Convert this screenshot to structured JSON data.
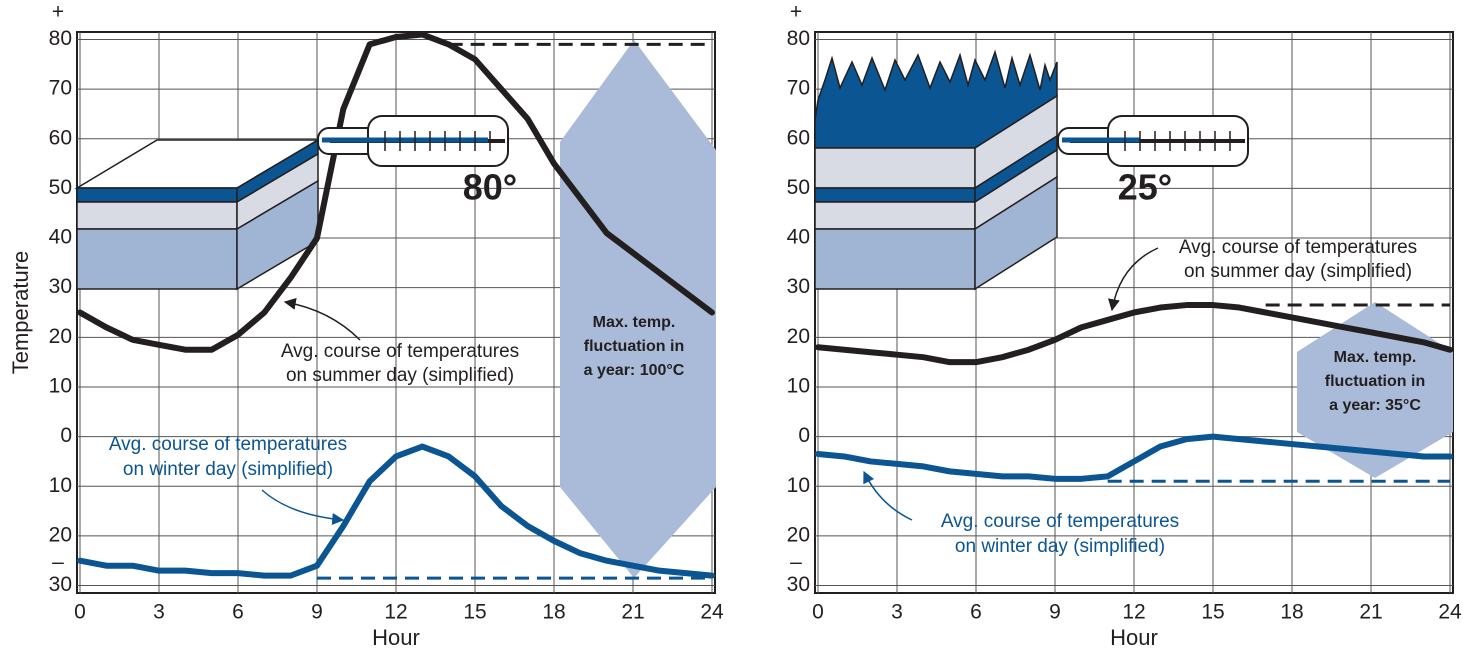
{
  "chart_data": [
    {
      "type": "line",
      "ylabel": "Temperature",
      "xlabel": "Hour",
      "sign_labels": [
        "+",
        "–"
      ],
      "x": [
        0,
        1,
        2,
        3,
        4,
        5,
        6,
        7,
        8,
        9,
        10,
        11,
        12,
        13,
        14,
        15,
        16,
        17,
        18,
        19,
        20,
        21,
        22,
        23,
        24
      ],
      "xlim": [
        0,
        24
      ],
      "xticks": [
        0,
        3,
        6,
        9,
        12,
        15,
        18,
        21,
        24
      ],
      "ylim": [
        -31.5,
        81.5
      ],
      "yticks": [
        80,
        70,
        60,
        50,
        40,
        30,
        20,
        10,
        0,
        {
          "value": -10,
          "label": "10"
        },
        {
          "value": -20,
          "label": "20"
        },
        {
          "value": -30,
          "label": "30"
        }
      ],
      "grid": true,
      "series": [
        {
          "name": "Avg. course of temperatures on summer day (simplified)",
          "color": "#231f20",
          "values": [
            25,
            22,
            19.5,
            18.5,
            17.5,
            17.5,
            20.5,
            25,
            32,
            40,
            66,
            79,
            80.5,
            81,
            79,
            76,
            70,
            64,
            55,
            48,
            41,
            37,
            33,
            29,
            25
          ]
        },
        {
          "name": "Avg. course of temperatures on winter day (simplified)",
          "color": "#0b5592",
          "values": [
            -25,
            -26,
            -26,
            -27,
            -27,
            -27.5,
            -27.5,
            -28,
            -28,
            -26,
            -18,
            -9,
            -4,
            -2,
            -4,
            -8,
            -14,
            -18,
            -21,
            -23.5,
            -25,
            -26,
            -27,
            -27.5,
            -28
          ]
        }
      ],
      "max_lines": [
        {
          "color": "#231f20",
          "value": 79,
          "from": 14,
          "to": 24
        },
        {
          "color": "#0b5592",
          "value": -28.5,
          "from": 9,
          "to": 24
        }
      ],
      "annotations": {
        "summer": [
          "Avg. course of temperatures",
          "on summer day (simplified)"
        ],
        "winter": [
          "Avg. course of temperatures",
          "on winter day (simplified)"
        ],
        "reading": "80°",
        "fluctuation": [
          "Max. temp.",
          "fluctuation in",
          "a year: 100°C"
        ]
      }
    },
    {
      "type": "line",
      "xlabel": "Hour",
      "sign_labels": [
        "+",
        "–"
      ],
      "x": [
        0,
        1,
        2,
        3,
        4,
        5,
        6,
        7,
        8,
        9,
        10,
        11,
        12,
        13,
        14,
        15,
        16,
        17,
        18,
        19,
        20,
        21,
        22,
        23,
        24
      ],
      "xlim": [
        0,
        24
      ],
      "xticks": [
        0,
        3,
        6,
        9,
        12,
        15,
        18,
        21,
        24
      ],
      "ylim": [
        -31.5,
        81.5
      ],
      "yticks": [
        80,
        70,
        60,
        50,
        40,
        30,
        20,
        10,
        0,
        {
          "value": -10,
          "label": "10"
        },
        {
          "value": -20,
          "label": "20"
        },
        {
          "value": -30,
          "label": "30"
        }
      ],
      "grid": true,
      "series": [
        {
          "name": "Avg. course of temperatures on summer day (simplified)",
          "color": "#231f20",
          "values": [
            18,
            17.5,
            17,
            16.5,
            16,
            15,
            15,
            16,
            17.5,
            19.5,
            22,
            23.5,
            25,
            26,
            26.5,
            26.5,
            26,
            25,
            24,
            23,
            22,
            21,
            20,
            19,
            17.5
          ]
        },
        {
          "name": "Avg. course of temperatures on winter day (simplified)",
          "color": "#0b5592",
          "values": [
            -3.5,
            -4,
            -5,
            -5.5,
            -6,
            -7,
            -7.5,
            -8,
            -8,
            -8.5,
            -8.5,
            -8,
            -5,
            -2,
            -0.5,
            0,
            -0.5,
            -1,
            -1.5,
            -2,
            -2.5,
            -3,
            -3.5,
            -4,
            -4
          ]
        }
      ],
      "max_lines": [
        {
          "color": "#231f20",
          "value": 26.5,
          "from": 17,
          "to": 24
        },
        {
          "color": "#0b5592",
          "value": -9,
          "from": 11,
          "to": 24
        }
      ],
      "annotations": {
        "summer": [
          "Avg. course of temperatures",
          "on summer day (simplified)"
        ],
        "winter": [
          "Avg. course of temperatures",
          "on winter day (simplified)"
        ],
        "reading": "25°",
        "fluctuation": [
          "Max. temp.",
          "fluctuation in",
          "a year: 35°C"
        ]
      }
    }
  ]
}
